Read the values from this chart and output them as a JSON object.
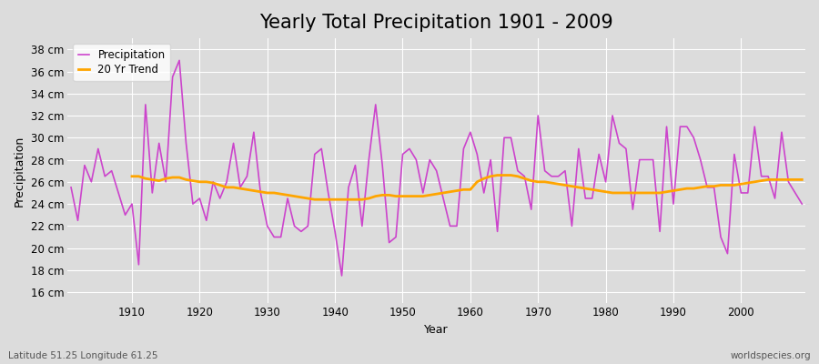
{
  "title": "Yearly Total Precipitation 1901 - 2009",
  "xlabel": "Year",
  "ylabel": "Precipitation",
  "subtitle_left": "Latitude 51.25 Longitude 61.25",
  "subtitle_right": "worldspecies.org",
  "years": [
    1901,
    1902,
    1903,
    1904,
    1905,
    1906,
    1907,
    1908,
    1909,
    1910,
    1911,
    1912,
    1913,
    1914,
    1915,
    1916,
    1917,
    1918,
    1919,
    1920,
    1921,
    1922,
    1923,
    1924,
    1925,
    1926,
    1927,
    1928,
    1929,
    1930,
    1931,
    1932,
    1933,
    1934,
    1935,
    1936,
    1937,
    1938,
    1939,
    1940,
    1941,
    1942,
    1943,
    1944,
    1945,
    1946,
    1947,
    1948,
    1949,
    1950,
    1951,
    1952,
    1953,
    1954,
    1955,
    1956,
    1957,
    1958,
    1959,
    1960,
    1961,
    1962,
    1963,
    1964,
    1965,
    1966,
    1967,
    1968,
    1969,
    1970,
    1971,
    1972,
    1973,
    1974,
    1975,
    1976,
    1977,
    1978,
    1979,
    1980,
    1981,
    1982,
    1983,
    1984,
    1985,
    1986,
    1987,
    1988,
    1989,
    1990,
    1991,
    1992,
    1993,
    1994,
    1995,
    1996,
    1997,
    1998,
    1999,
    2000,
    2001,
    2002,
    2003,
    2004,
    2005,
    2006,
    2007,
    2008,
    2009
  ],
  "precip": [
    25.5,
    22.5,
    27.5,
    26.0,
    29.0,
    26.5,
    27.0,
    25.0,
    23.0,
    24.0,
    18.5,
    33.0,
    25.0,
    29.5,
    26.0,
    35.5,
    37.0,
    29.5,
    24.0,
    24.5,
    22.5,
    26.0,
    24.5,
    26.0,
    29.5,
    25.5,
    26.5,
    30.5,
    25.0,
    22.0,
    21.0,
    21.0,
    24.5,
    22.0,
    21.5,
    22.0,
    28.5,
    29.0,
    25.0,
    21.5,
    17.5,
    25.5,
    27.5,
    22.0,
    28.0,
    33.0,
    27.5,
    20.5,
    21.0,
    28.5,
    29.0,
    28.0,
    25.0,
    28.0,
    27.0,
    24.5,
    22.0,
    22.0,
    29.0,
    30.5,
    28.5,
    25.0,
    28.0,
    21.5,
    30.0,
    30.0,
    27.0,
    26.5,
    23.5,
    32.0,
    27.0,
    26.5,
    26.5,
    27.0,
    22.0,
    29.0,
    24.5,
    24.5,
    28.5,
    26.0,
    32.0,
    29.5,
    29.0,
    23.5,
    28.0,
    28.0,
    28.0,
    21.5,
    31.0,
    24.0,
    31.0,
    31.0,
    30.0,
    28.0,
    25.5,
    25.5,
    21.0,
    19.5,
    28.5,
    25.0,
    25.0,
    31.0,
    26.5,
    26.5,
    24.5,
    30.5,
    26.0,
    25.0,
    24.0
  ],
  "trend": [
    null,
    null,
    null,
    null,
    null,
    null,
    null,
    null,
    null,
    26.5,
    26.5,
    26.3,
    26.2,
    26.1,
    26.3,
    26.4,
    26.4,
    26.2,
    26.1,
    26.0,
    26.0,
    25.9,
    25.7,
    25.5,
    25.5,
    25.4,
    25.3,
    25.2,
    25.1,
    25.0,
    25.0,
    24.9,
    24.8,
    24.7,
    24.6,
    24.5,
    24.4,
    24.4,
    24.4,
    24.4,
    24.4,
    24.4,
    24.4,
    24.4,
    24.5,
    24.7,
    24.8,
    24.8,
    24.7,
    24.7,
    24.7,
    24.7,
    24.7,
    24.8,
    24.9,
    25.0,
    25.1,
    25.2,
    25.3,
    25.3,
    26.0,
    26.3,
    26.5,
    26.6,
    26.6,
    26.6,
    26.5,
    26.3,
    26.1,
    26.0,
    26.0,
    25.9,
    25.8,
    25.7,
    25.6,
    25.5,
    25.4,
    25.3,
    25.2,
    25.1,
    25.0,
    25.0,
    25.0,
    25.0,
    25.0,
    25.0,
    25.0,
    25.0,
    25.1,
    25.2,
    25.3,
    25.4,
    25.4,
    25.5,
    25.6,
    25.6,
    25.7,
    25.7,
    25.7,
    25.8,
    25.9,
    26.0,
    26.1,
    26.2,
    26.2,
    26.2,
    26.2,
    26.2,
    26.2
  ],
  "precip_color": "#CC44CC",
  "trend_color": "#FFA500",
  "bg_color": "#DCDCDC",
  "plot_bg_color": "#DCDCDC",
  "ylim": [
    15,
    39
  ],
  "yticks": [
    16,
    18,
    20,
    22,
    24,
    26,
    28,
    30,
    32,
    34,
    36,
    38
  ],
  "xticks": [
    1910,
    1920,
    1930,
    1940,
    1950,
    1960,
    1970,
    1980,
    1990,
    2000
  ],
  "title_fontsize": 15,
  "label_fontsize": 9,
  "tick_fontsize": 8.5
}
